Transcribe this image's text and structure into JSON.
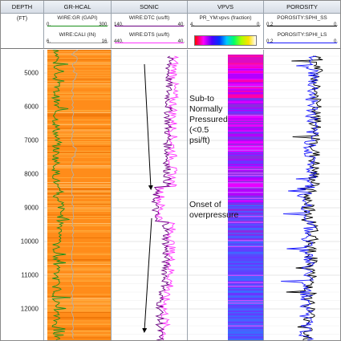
{
  "tracks": {
    "depth": {
      "title": "DEPTH",
      "unit": "(FT)"
    },
    "gr": {
      "title": "GR-HCAL",
      "curves": [
        {
          "name": "WIRE:GR (GAPI)",
          "min": "0.",
          "max": "300.",
          "color": "#1a8f1a"
        },
        {
          "name": "WIRE:CALI (IN)",
          "min": "6.",
          "max": "16.",
          "color": "#9a9a9a"
        }
      ]
    },
    "sonic": {
      "title": "SONIC",
      "curves": [
        {
          "name": "WIRE:DTC (us/ft)",
          "min": "140.",
          "max": "40.",
          "color": "#6a0080"
        },
        {
          "name": "WIRE:DTS (us/ft)",
          "min": "440.",
          "max": "40.",
          "color": "#ff33ff"
        }
      ]
    },
    "vpvs": {
      "title": "VPVS",
      "curves": [
        {
          "name": "PR_YM:vpvs (fraction)",
          "min": "4.",
          "max": "0."
        }
      ]
    },
    "porosity": {
      "title": "POROSITY",
      "curves": [
        {
          "name": "POROSITY:SPHI_SS",
          "min": "0.2",
          "max": "0.",
          "color": "#000000"
        },
        {
          "name": "POROSITY:SPHI_LS",
          "min": "0.2",
          "max": "0.",
          "color": "#1a1aff"
        }
      ]
    }
  },
  "depth_labels": [
    "5000",
    "6000",
    "7000",
    "8000",
    "9000",
    "10000",
    "11000",
    "12000"
  ],
  "annotations": {
    "normal": [
      "Sub-to",
      "Normally",
      "Pressured",
      "(<0.5",
      "psi/ft)"
    ],
    "overpressure": [
      "Onset of",
      "overpressure"
    ]
  },
  "colors": {
    "gr_fill": "#ff8c1a",
    "header_bg": "#dfe4ea",
    "grid": "#d0d0d0"
  }
}
